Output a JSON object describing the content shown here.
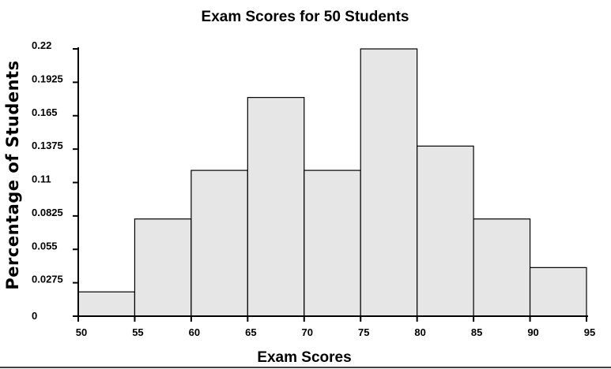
{
  "chart_data": {
    "type": "bar",
    "title": "Exam Scores for 50 Students",
    "xlabel": "Exam Scores",
    "ylabel": "Percentage of Students",
    "bin_edges": [
      50,
      55,
      60,
      65,
      70,
      75,
      80,
      85,
      90,
      95
    ],
    "values": [
      0.02,
      0.08,
      0.12,
      0.18,
      0.12,
      0.22,
      0.14,
      0.08,
      0.04
    ],
    "x_ticks": [
      "50",
      "55",
      "60",
      "65",
      "70",
      "75",
      "80",
      "85",
      "90",
      "95"
    ],
    "y_ticks": [
      "0",
      "0.0275",
      "0.055",
      "0.0825",
      "0.11",
      "0.1375",
      "0.165",
      "0.1925",
      "0.22"
    ],
    "xlim": [
      50,
      95
    ],
    "ylim": [
      0,
      0.22
    ],
    "grid": false,
    "bar_color": "#e6e6e6",
    "edge_color": "#000000"
  }
}
